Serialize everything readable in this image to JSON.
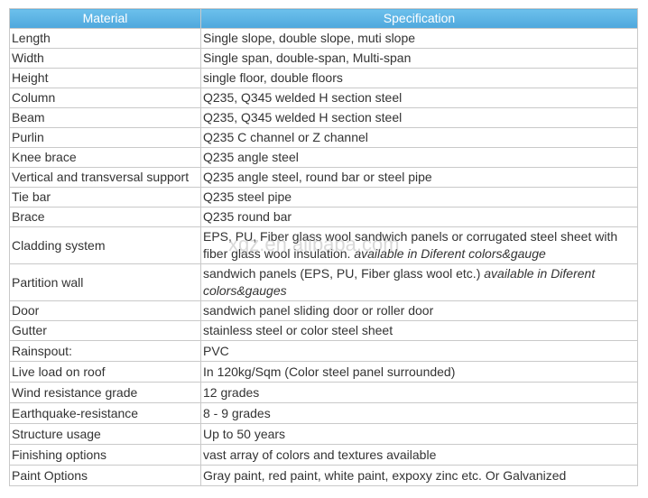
{
  "watermark": "xgz.en.alibaba.com",
  "table": {
    "header": [
      "Material",
      "Specification"
    ],
    "rows": [
      {
        "material": "Length",
        "spec": "Single slope, double slope, muti slope"
      },
      {
        "material": "Width",
        "spec": "Single span, double-span, Multi-span"
      },
      {
        "material": "Height",
        "spec": "single floor, double floors"
      },
      {
        "material": "Column",
        "spec": "Q235, Q345 welded H section steel"
      },
      {
        "material": "Beam",
        "spec": "Q235, Q345 welded H section steel"
      },
      {
        "material": "Purlin",
        "spec": "Q235 C channel or Z channel"
      },
      {
        "material": "Knee brace",
        "spec": "Q235 angle steel"
      },
      {
        "material": "Vertical and transversal support",
        "spec": "Q235 angle steel, round bar or steel pipe"
      },
      {
        "material": "Tie bar",
        "spec": "Q235 steel pipe"
      },
      {
        "material": "Brace",
        "spec": "Q235 round bar"
      },
      {
        "material": "Cladding system",
        "spec": "EPS, PU, Fiber glass wool sandwich panels or corrugated steel sheet with fiber glass wool insulation.",
        "spec_italic": "available in Diferent colors&gauge"
      },
      {
        "material": "Partition wall",
        "spec": "sandwich panels (EPS, PU, Fiber glass wool etc.)",
        "spec_italic": "available in Diferent colors&gauges"
      },
      {
        "material": "Door",
        "spec": "sandwich panel sliding door or roller door"
      },
      {
        "material": "Gutter",
        "spec": "stainless steel or color steel sheet"
      },
      {
        "material": "Rainspout:",
        "spec": "PVC"
      },
      {
        "material": "Live load on roof",
        "spec": "In 120kg/Sqm (Color steel panel surrounded)"
      },
      {
        "material": "Wind resistance grade",
        "spec": "12 grades"
      },
      {
        "material": "Earthquake-resistance",
        "spec": "8 - 9 grades"
      },
      {
        "material": "Structure usage",
        "spec": "Up to 50 years"
      },
      {
        "material": "Finishing options",
        "spec": "vast array of colors and textures available"
      },
      {
        "material": "Paint Options",
        "spec": "Gray paint, red paint, white paint, expoxy zinc etc. Or Galvanized"
      }
    ]
  }
}
